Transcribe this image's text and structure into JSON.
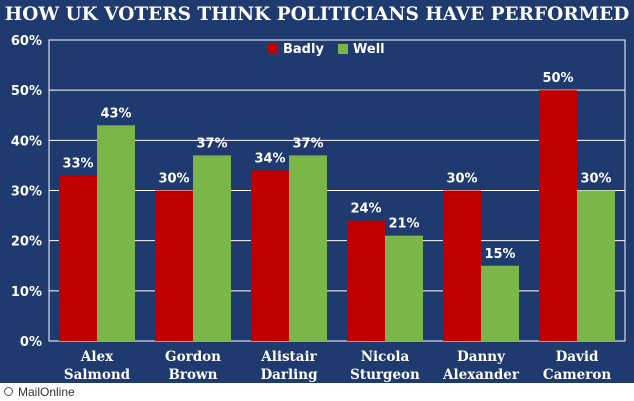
{
  "chart_data": {
    "type": "bar",
    "title": "HOW UK VOTERS THINK POLITICIANS HAVE PERFORMED",
    "categories": [
      [
        "Alex",
        "Salmond"
      ],
      [
        "Gordon",
        "Brown"
      ],
      [
        "Alistair",
        "Darling"
      ],
      [
        "Nicola",
        "Sturgeon"
      ],
      [
        "Danny",
        "Alexander"
      ],
      [
        "David",
        "Cameron"
      ]
    ],
    "series": [
      {
        "name": "Badly",
        "color": "#c00000",
        "values": [
          33,
          30,
          34,
          24,
          30,
          50
        ]
      },
      {
        "name": "Well",
        "color": "#7ab648",
        "values": [
          43,
          37,
          37,
          21,
          15,
          30
        ]
      }
    ],
    "ylim": [
      0,
      60
    ],
    "yticks": [
      0,
      10,
      20,
      30,
      40,
      50,
      60
    ],
    "value_suffix": "%",
    "legend_position": "top-center",
    "xlabel": "",
    "ylabel": ""
  },
  "footer": {
    "source": "MailOnline"
  }
}
